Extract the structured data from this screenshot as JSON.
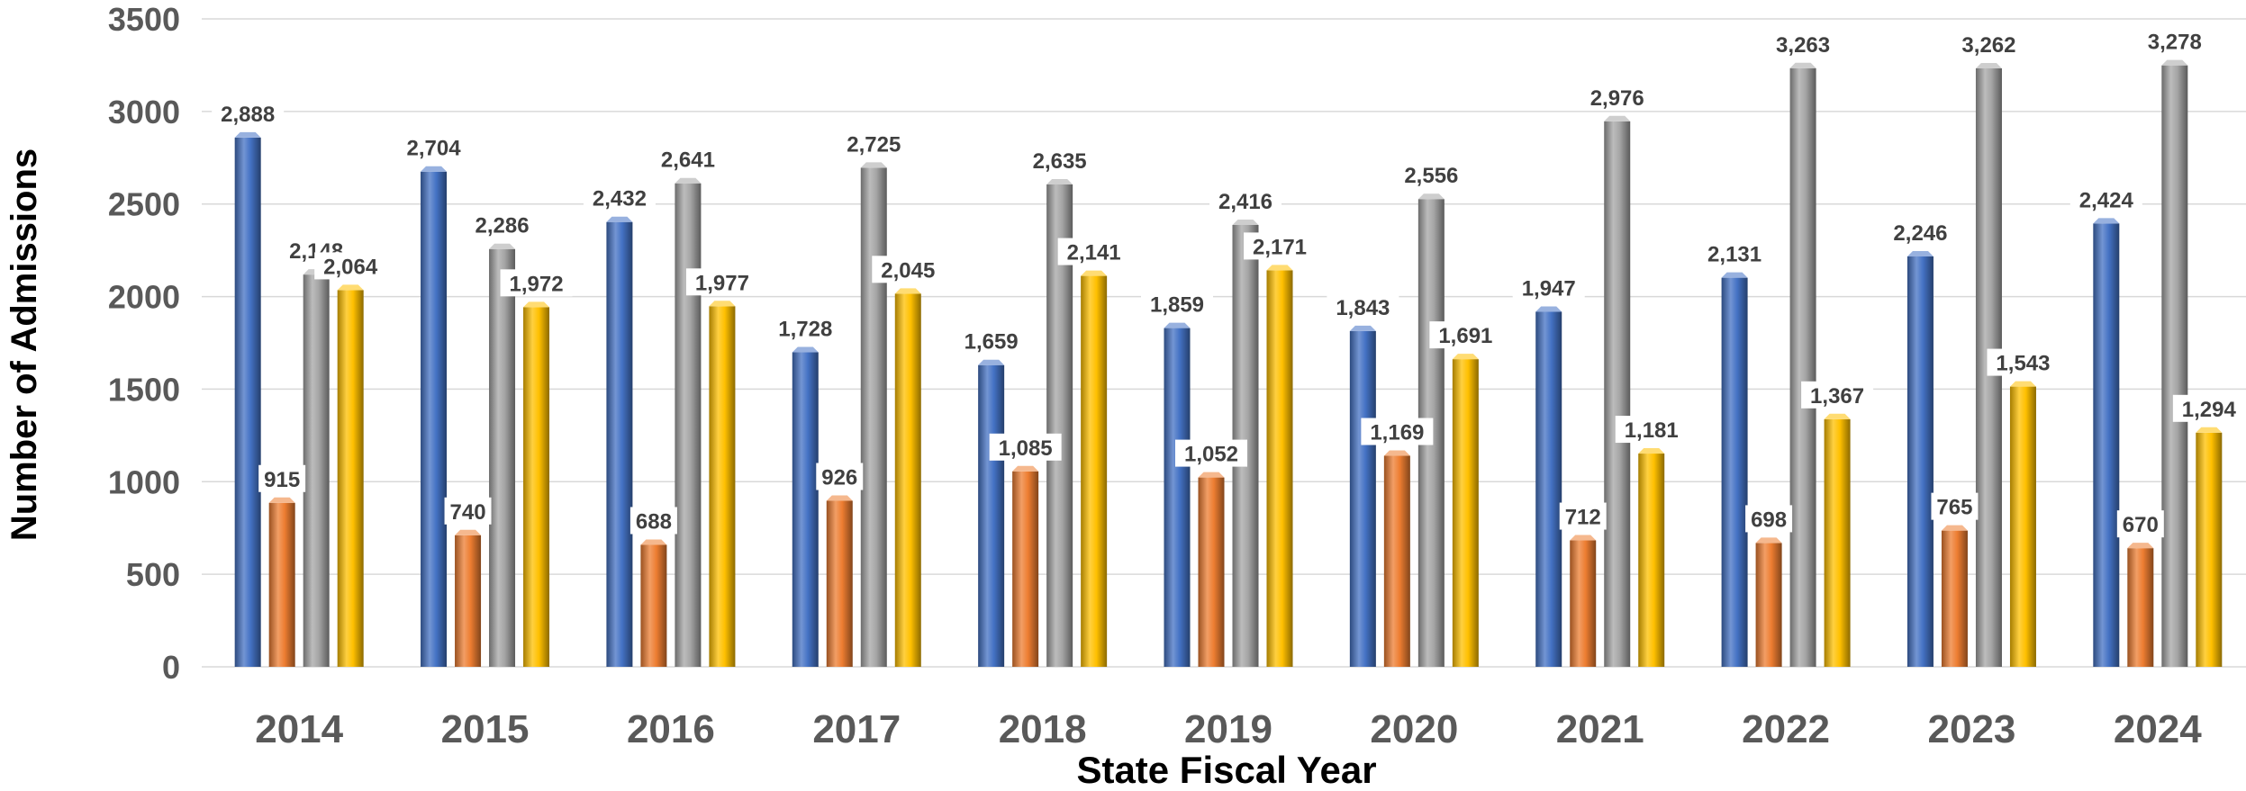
{
  "chart_data": {
    "type": "bar",
    "title": "",
    "xlabel": "State Fiscal Year",
    "ylabel": "Number of Admissions",
    "ylim": [
      0,
      3500
    ],
    "yticks": [
      0,
      500,
      1000,
      1500,
      2000,
      2500,
      3000,
      3500
    ],
    "grid": true,
    "legend": "none",
    "categories": [
      "2014",
      "2015",
      "2016",
      "2017",
      "2018",
      "2019",
      "2020",
      "2021",
      "2022",
      "2023",
      "2024"
    ],
    "series": [
      {
        "color": "#4472C4",
        "values": [
          2888,
          2704,
          2432,
          1728,
          1659,
          1859,
          1843,
          1947,
          2131,
          2246,
          2424
        ],
        "labels": [
          "2,888",
          "2,704",
          "2,432",
          "1,728",
          "1,659",
          "1,859",
          "1,843",
          "1,947",
          "2,131",
          "2,246",
          "2,424"
        ]
      },
      {
        "color": "#ED7D31",
        "values": [
          915,
          740,
          688,
          926,
          1085,
          1052,
          1169,
          712,
          698,
          765,
          670
        ],
        "labels": [
          "915",
          "740",
          "688",
          "926",
          "1,085",
          "1,052",
          "1,169",
          "712",
          "698",
          "765",
          "670"
        ]
      },
      {
        "color": "#A5A5A5",
        "values": [
          2148,
          2286,
          2641,
          2725,
          2635,
          2416,
          2556,
          2976,
          3263,
          3262,
          3278
        ],
        "labels": [
          "2,148",
          "2,286",
          "2,641",
          "2,725",
          "2,635",
          "2,416",
          "2,556",
          "2,976",
          "3,263",
          "3,262",
          "3,278"
        ]
      },
      {
        "color": "#FFC000",
        "values": [
          2064,
          1972,
          1977,
          2045,
          2141,
          2171,
          1691,
          1181,
          1367,
          1543,
          1294
        ],
        "labels": [
          "2,064",
          "1,972",
          "1,977",
          "2,045",
          "2,141",
          "2,171",
          "1,691",
          "1,181",
          "1,367",
          "1,543",
          "1,294"
        ]
      }
    ]
  }
}
